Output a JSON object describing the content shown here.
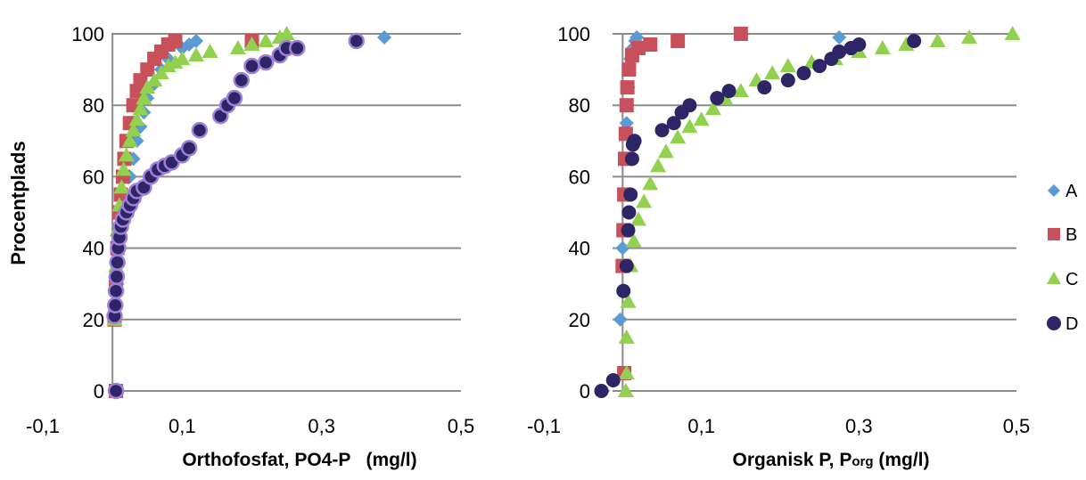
{
  "colors": {
    "A": "#5b9bd5",
    "B": "#c8505a",
    "C": "#92d050",
    "D": "#2e2566",
    "D_outline": "#9e7fd9",
    "grid": "#8c8c8c"
  },
  "legend": {
    "A": "A",
    "B": "B",
    "C": "C",
    "D": "D",
    "placement": "right"
  },
  "chart_data": [
    {
      "type": "scatter",
      "title": "",
      "xlabel": "Orthofosfat, PO4-P   (mg/l)",
      "ylabel": "Procentplads",
      "xlim": [
        -0.1,
        0.5
      ],
      "ylim": [
        0,
        100
      ],
      "xticks": [
        "-0,1",
        "0,1",
        "0,3",
        "0,5"
      ],
      "yticks": [
        "0",
        "20",
        "40",
        "60",
        "80",
        "100"
      ],
      "grid": "horizontal",
      "series": [
        {
          "name": "A",
          "points": [
            [
              0.005,
              0
            ],
            [
              0.004,
              20
            ],
            [
              0.007,
              30
            ],
            [
              0.01,
              40
            ],
            [
              0.014,
              50
            ],
            [
              0.02,
              55
            ],
            [
              0.025,
              60
            ],
            [
              0.03,
              65
            ],
            [
              0.035,
              70
            ],
            [
              0.04,
              74
            ],
            [
              0.045,
              78
            ],
            [
              0.05,
              82
            ],
            [
              0.06,
              86
            ],
            [
              0.07,
              90
            ],
            [
              0.08,
              93
            ],
            [
              0.1,
              96
            ],
            [
              0.11,
              97
            ],
            [
              0.12,
              98
            ],
            [
              0.39,
              99
            ]
          ]
        },
        {
          "name": "B",
          "points": [
            [
              0.005,
              0
            ],
            [
              0.003,
              20
            ],
            [
              0.005,
              30
            ],
            [
              0.007,
              40
            ],
            [
              0.01,
              50
            ],
            [
              0.012,
              55
            ],
            [
              0.015,
              60
            ],
            [
              0.017,
              65
            ],
            [
              0.02,
              70
            ],
            [
              0.025,
              75
            ],
            [
              0.03,
              80
            ],
            [
              0.035,
              84
            ],
            [
              0.04,
              87
            ],
            [
              0.05,
              90
            ],
            [
              0.06,
              93
            ],
            [
              0.07,
              95
            ],
            [
              0.08,
              97
            ],
            [
              0.09,
              98
            ],
            [
              0.2,
              98
            ]
          ]
        },
        {
          "name": "C",
          "points": [
            [
              0.003,
              20
            ],
            [
              0.005,
              35
            ],
            [
              0.007,
              45
            ],
            [
              0.01,
              52
            ],
            [
              0.013,
              57
            ],
            [
              0.016,
              62
            ],
            [
              0.02,
              66
            ],
            [
              0.025,
              70
            ],
            [
              0.03,
              73
            ],
            [
              0.035,
              76
            ],
            [
              0.04,
              79
            ],
            [
              0.045,
              82
            ],
            [
              0.05,
              85
            ],
            [
              0.06,
              87
            ],
            [
              0.07,
              89
            ],
            [
              0.08,
              91
            ],
            [
              0.09,
              92
            ],
            [
              0.1,
              93
            ],
            [
              0.12,
              94
            ],
            [
              0.14,
              95
            ],
            [
              0.18,
              96
            ],
            [
              0.2,
              97
            ],
            [
              0.22,
              98
            ],
            [
              0.24,
              99
            ],
            [
              0.25,
              100
            ]
          ]
        },
        {
          "name": "D",
          "points": [
            [
              0.005,
              0
            ],
            [
              0.003,
              21
            ],
            [
              0.004,
              24
            ],
            [
              0.005,
              28
            ],
            [
              0.006,
              32
            ],
            [
              0.007,
              36
            ],
            [
              0.008,
              40
            ],
            [
              0.01,
              43
            ],
            [
              0.012,
              46
            ],
            [
              0.015,
              48
            ],
            [
              0.02,
              50
            ],
            [
              0.025,
              52
            ],
            [
              0.03,
              54
            ],
            [
              0.035,
              56
            ],
            [
              0.045,
              57
            ],
            [
              0.055,
              60
            ],
            [
              0.065,
              62
            ],
            [
              0.075,
              63
            ],
            [
              0.085,
              64
            ],
            [
              0.1,
              66
            ],
            [
              0.11,
              68
            ],
            [
              0.125,
              73
            ],
            [
              0.155,
              77
            ],
            [
              0.165,
              80
            ],
            [
              0.175,
              82
            ],
            [
              0.185,
              87
            ],
            [
              0.2,
              91
            ],
            [
              0.22,
              92
            ],
            [
              0.24,
              94
            ],
            [
              0.25,
              96
            ],
            [
              0.265,
              96
            ],
            [
              0.35,
              98
            ]
          ]
        }
      ]
    },
    {
      "type": "scatter",
      "title": "",
      "xlabel": "Organisk P, Porg (mg/l)",
      "xlabel_main": "Organisk P, P",
      "xlabel_sub": "org",
      "xlabel_end": " (mg/l)",
      "ylabel": "",
      "xlim": [
        -0.1,
        0.5
      ],
      "ylim": [
        0,
        100
      ],
      "xticks": [
        "-0,1",
        "0,1",
        "0,3",
        "0,5"
      ],
      "yticks": [
        "0",
        "20",
        "40",
        "60",
        "80",
        "100"
      ],
      "grid": "horizontal",
      "series": [
        {
          "name": "A",
          "points": [
            [
              -0.025,
              0
            ],
            [
              -0.003,
              20
            ],
            [
              0,
              40
            ],
            [
              0.001,
              45
            ],
            [
              0.002,
              55
            ],
            [
              0.004,
              65
            ],
            [
              0.005,
              75
            ],
            [
              0.007,
              85
            ],
            [
              0.01,
              93
            ],
            [
              0.013,
              96
            ],
            [
              0.016,
              98
            ],
            [
              0.018,
              99
            ],
            [
              0.275,
              99
            ]
          ]
        },
        {
          "name": "B",
          "points": [
            [
              0.002,
              5
            ],
            [
              0,
              35
            ],
            [
              0.001,
              45
            ],
            [
              0.002,
              55
            ],
            [
              0.003,
              65
            ],
            [
              0.004,
              72
            ],
            [
              0.005,
              80
            ],
            [
              0.006,
              85
            ],
            [
              0.008,
              90
            ],
            [
              0.012,
              94
            ],
            [
              0.02,
              96
            ],
            [
              0.035,
              97
            ],
            [
              0.07,
              98
            ],
            [
              0.15,
              100
            ]
          ]
        },
        {
          "name": "C",
          "points": [
            [
              0.004,
              0
            ],
            [
              0.005,
              5
            ],
            [
              0.005,
              15
            ],
            [
              0.007,
              25
            ],
            [
              0.01,
              35
            ],
            [
              0.014,
              42
            ],
            [
              0.02,
              48
            ],
            [
              0.027,
              53
            ],
            [
              0.035,
              58
            ],
            [
              0.045,
              63
            ],
            [
              0.055,
              67
            ],
            [
              0.07,
              71
            ],
            [
              0.085,
              74
            ],
            [
              0.1,
              76
            ],
            [
              0.115,
              79
            ],
            [
              0.13,
              82
            ],
            [
              0.15,
              84
            ],
            [
              0.17,
              87
            ],
            [
              0.19,
              89
            ],
            [
              0.21,
              91
            ],
            [
              0.24,
              92
            ],
            [
              0.27,
              93
            ],
            [
              0.3,
              95
            ],
            [
              0.33,
              96
            ],
            [
              0.36,
              97
            ],
            [
              0.4,
              98
            ],
            [
              0.44,
              99
            ],
            [
              0.495,
              100
            ]
          ]
        },
        {
          "name": "D",
          "points": [
            [
              -0.027,
              0
            ],
            [
              -0.012,
              3
            ],
            [
              0.001,
              28
            ],
            [
              0.005,
              35
            ],
            [
              0.007,
              45
            ],
            [
              0.008,
              50
            ],
            [
              0.01,
              55
            ],
            [
              0.012,
              65
            ],
            [
              0.013,
              69
            ],
            [
              0.015,
              70
            ],
            [
              0.05,
              73
            ],
            [
              0.065,
              75
            ],
            [
              0.075,
              78
            ],
            [
              0.085,
              80
            ],
            [
              0.12,
              82
            ],
            [
              0.135,
              84
            ],
            [
              0.18,
              85
            ],
            [
              0.21,
              87
            ],
            [
              0.23,
              89
            ],
            [
              0.25,
              91
            ],
            [
              0.265,
              93
            ],
            [
              0.275,
              95
            ],
            [
              0.29,
              96
            ],
            [
              0.3,
              97
            ],
            [
              0.37,
              98
            ]
          ]
        }
      ]
    }
  ]
}
